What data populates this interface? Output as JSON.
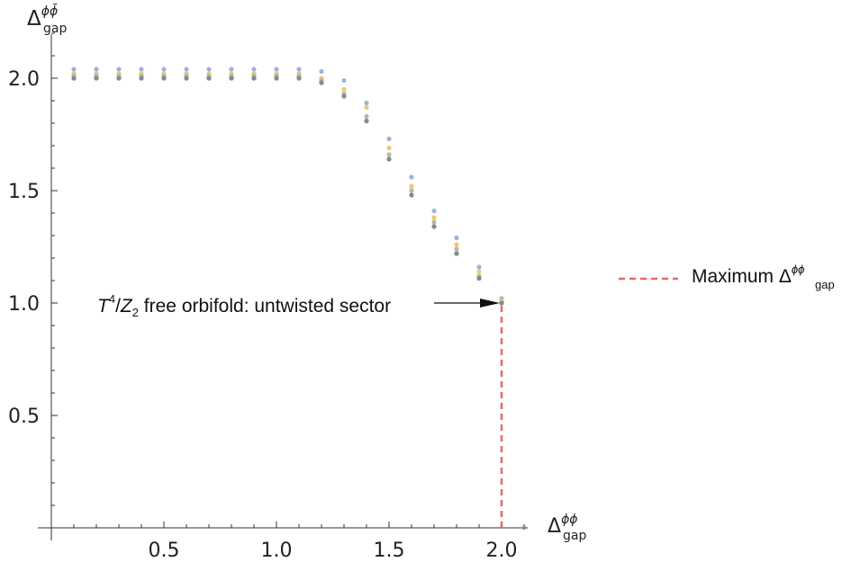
{
  "chart_data": {
    "type": "scatter",
    "xlabel": {
      "base": "Δ",
      "sup": "ϕϕ",
      "sub": "gap"
    },
    "ylabel": {
      "base": "Δ",
      "sup": "ϕϕ̄",
      "sub": "gap"
    },
    "x_ticks": [
      "0.5",
      "1.0",
      "1.5",
      "2.0"
    ],
    "y_ticks": [
      "0.5",
      "1.0",
      "1.5",
      "2.0"
    ],
    "xlim": [
      0,
      2.14
    ],
    "ylim": [
      0,
      2.23
    ],
    "grid": false,
    "legend_position": "right",
    "legend": [
      {
        "name": "Maximum",
        "sym": {
          "base": "Δ",
          "sup": "ϕϕ",
          "sub": "gap"
        },
        "color": "#ee6666",
        "style": "dashed"
      }
    ],
    "x": [
      0.1,
      0.2,
      0.3,
      0.4,
      0.5,
      0.6,
      0.7,
      0.8,
      0.9,
      1.0,
      1.1,
      1.2,
      1.3,
      1.4,
      1.5,
      1.6,
      1.7,
      1.8,
      1.9,
      2.0
    ],
    "series": [
      {
        "color": "#9db4d6",
        "values": [
          2.04,
          2.04,
          2.04,
          2.04,
          2.04,
          2.04,
          2.04,
          2.04,
          2.04,
          2.04,
          2.04,
          2.03,
          1.99,
          1.89,
          1.73,
          1.56,
          1.41,
          1.29,
          1.16,
          1.02
        ]
      },
      {
        "color": "#f2c76b",
        "values": [
          2.02,
          2.02,
          2.02,
          2.02,
          2.02,
          2.02,
          2.02,
          2.02,
          2.02,
          2.02,
          2.02,
          2.0,
          1.95,
          1.87,
          1.69,
          1.52,
          1.38,
          1.26,
          1.14,
          1.01
        ]
      },
      {
        "color": "#b7b9a2",
        "values": [
          2.01,
          2.01,
          2.01,
          2.01,
          2.01,
          2.01,
          2.01,
          2.01,
          2.01,
          2.01,
          2.01,
          1.99,
          1.93,
          1.83,
          1.66,
          1.5,
          1.36,
          1.24,
          1.12,
          1.0
        ]
      },
      {
        "color": "#9a93a6",
        "values": [
          2.0,
          2.0,
          2.0,
          2.0,
          2.0,
          2.0,
          2.0,
          2.0,
          2.0,
          2.0,
          2.0,
          1.98,
          1.92,
          1.81,
          1.64,
          1.48,
          1.34,
          1.22,
          1.11,
          1.0
        ]
      },
      {
        "color": "#7f8f8f",
        "values": [
          2.0,
          2.0,
          2.0,
          2.0,
          2.0,
          2.0,
          2.0,
          2.0,
          2.0,
          2.0,
          2.0,
          1.98,
          1.92,
          1.81,
          1.64,
          1.48,
          1.34,
          1.22,
          1.11,
          1.0
        ]
      }
    ],
    "max_line": {
      "x": 2.0,
      "y_from": 0,
      "y_to": 1.0,
      "color": "#ee6666"
    },
    "annotation": {
      "parts": [
        {
          "text": "T",
          "style": "italic"
        },
        {
          "text": "4",
          "style": "sup"
        },
        {
          "text": "/",
          "style": "normal"
        },
        {
          "text": "Z",
          "style": "italic"
        },
        {
          "text": "2",
          "style": "sub"
        },
        {
          "text": " free orbifold: untwisted sector",
          "style": "normal"
        }
      ],
      "target": [
        2.0,
        1.0
      ]
    }
  }
}
